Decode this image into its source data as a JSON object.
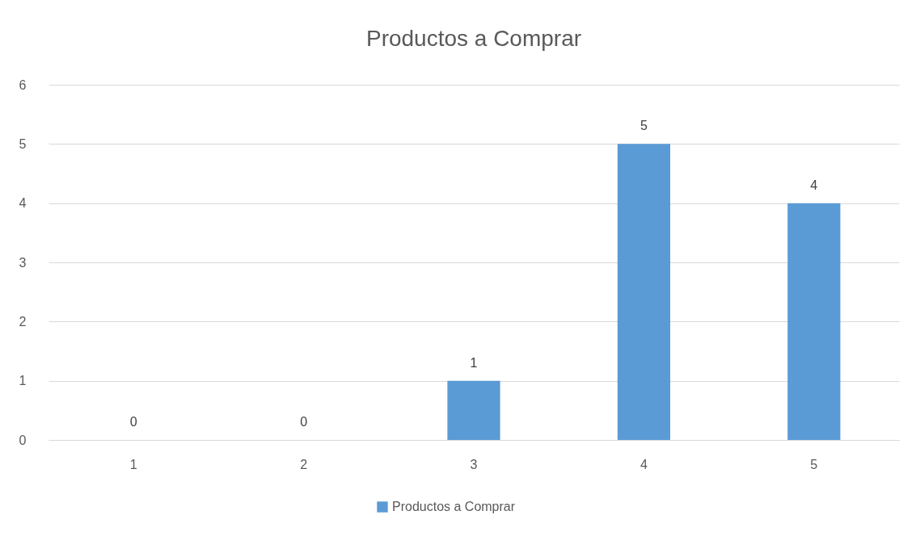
{
  "chart_data": {
    "type": "bar",
    "title": "Productos a Comprar",
    "categories": [
      "1",
      "2",
      "3",
      "4",
      "5"
    ],
    "series": [
      {
        "name": "Productos a Comprar",
        "color": "#5b9bd5",
        "values": [
          0,
          0,
          1,
          5,
          4
        ]
      }
    ],
    "ylim": [
      0,
      6
    ],
    "yticks": [
      0,
      1,
      2,
      3,
      4,
      5,
      6
    ],
    "grid": "y",
    "legend": "bottom",
    "data_labels": true
  }
}
